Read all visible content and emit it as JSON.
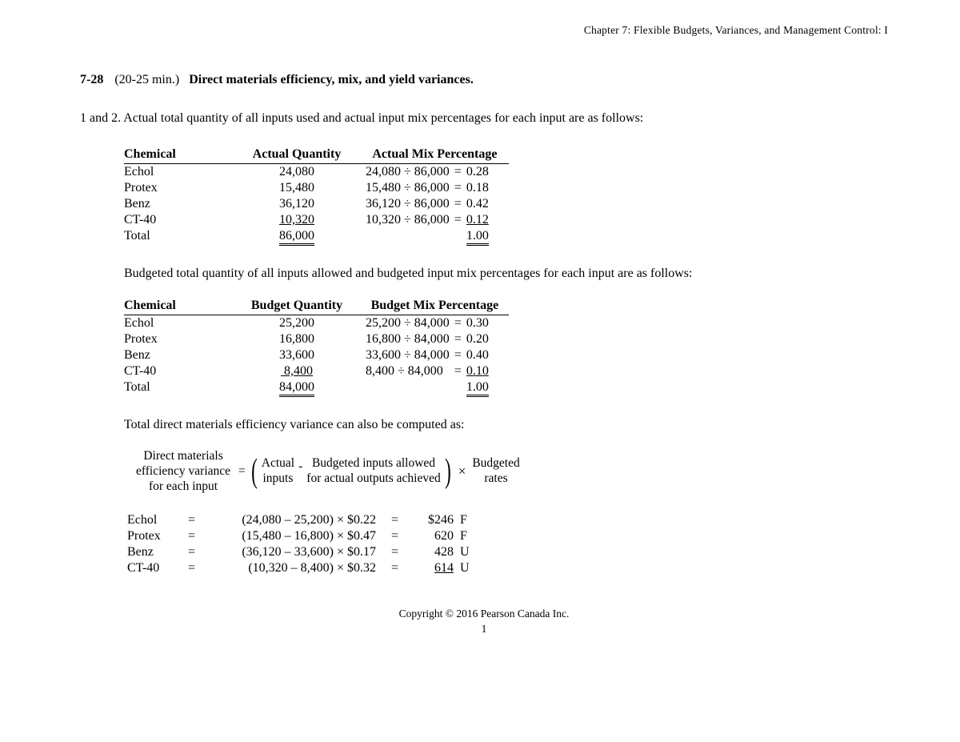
{
  "chapter_header": "Chapter 7: Flexible Budgets, Variances, and Management Control: I",
  "problem": {
    "number": "7-28",
    "time": "(20-25 min.)",
    "title": "Direct materials efficiency, mix, and yield variances."
  },
  "intro": "1 and 2.  Actual total quantity of all inputs used and actual input mix percentages for each input are as follows:",
  "table1": {
    "headers": {
      "c1": "Chemical",
      "c2": "Actual Quantity",
      "c3": "Actual Mix Percentage"
    },
    "rows": [
      {
        "chem": "Echol",
        "qty": "24,080",
        "calc": "24,080 ÷ 86,000",
        "eq": "=",
        "res": "0.28"
      },
      {
        "chem": "Protex",
        "qty": "15,480",
        "calc": "15,480 ÷ 86,000",
        "eq": "=",
        "res": "0.18"
      },
      {
        "chem": "Benz",
        "qty": "36,120",
        "calc": "36,120 ÷ 86,000",
        "eq": "=",
        "res": "0.42"
      },
      {
        "chem": "CT-40",
        "qty": "10,320",
        "calc": "10,320 ÷ 86,000",
        "eq": "=",
        "res": "0.12"
      }
    ],
    "total": {
      "label": "Total",
      "qty": "86,000",
      "res": "1.00"
    }
  },
  "mid_text": "Budgeted total quantity of all inputs allowed and budgeted input mix percentages for each input are as follows:",
  "table2": {
    "headers": {
      "c1": "Chemical",
      "c2": "Budget Quantity",
      "c3": "Budget Mix Percentage"
    },
    "rows": [
      {
        "chem": "Echol",
        "qty": "25,200",
        "calc": "25,200 ÷ 84,000",
        "eq": "=",
        "res": "0.30"
      },
      {
        "chem": "Protex",
        "qty": "16,800",
        "calc": "16,800 ÷ 84,000",
        "eq": "=",
        "res": "0.20"
      },
      {
        "chem": "Benz",
        "qty": "33,600",
        "calc": "33,600 ÷ 84,000",
        "eq": "=",
        "res": "0.40"
      },
      {
        "chem": "CT-40",
        "qty": "8,400",
        "calc": "8,400 ÷ 84,000",
        "eq": "=",
        "res": "0.10"
      }
    ],
    "total": {
      "label": "Total",
      "qty": "84,000",
      "res": "1.00"
    }
  },
  "eff_intro": "Total direct materials efficiency variance can also be computed as:",
  "formula": {
    "left_l1": "Direct materials",
    "left_l2": "efficiency variance",
    "left_l3": "for each input",
    "eq": "=",
    "a_l1": "Actual",
    "a_l2": "inputs",
    "minus": "-",
    "b_l1": "Budgeted inputs allowed",
    "b_l2": "for actual outputs achieved",
    "times": "×",
    "c_l1": "Budgeted",
    "c_l2": "rates"
  },
  "eff_rows": [
    {
      "chem": "Echol",
      "eq": "=",
      "expr": "(24,080 – 25,200) × $0.22",
      "eq2": "=",
      "val": "$246",
      "flag": "F",
      "underline": false
    },
    {
      "chem": "Protex",
      "eq": "=",
      "expr": "(15,480 – 16,800) × $0.47",
      "eq2": "=",
      "val": "620",
      "flag": "F",
      "underline": false
    },
    {
      "chem": "Benz",
      "eq": "=",
      "expr": "(36,120 – 33,600) × $0.17",
      "eq2": "=",
      "val": "428",
      "flag": "U",
      "underline": false
    },
    {
      "chem": "CT-40",
      "eq": "=",
      "expr": "(10,320 – 8,400) × $0.32",
      "eq2": "=",
      "val": "614",
      "flag": "U",
      "underline": true
    }
  ],
  "footer": {
    "copyright": "Copyright © 2016 Pearson Canada Inc.",
    "page": "1"
  }
}
